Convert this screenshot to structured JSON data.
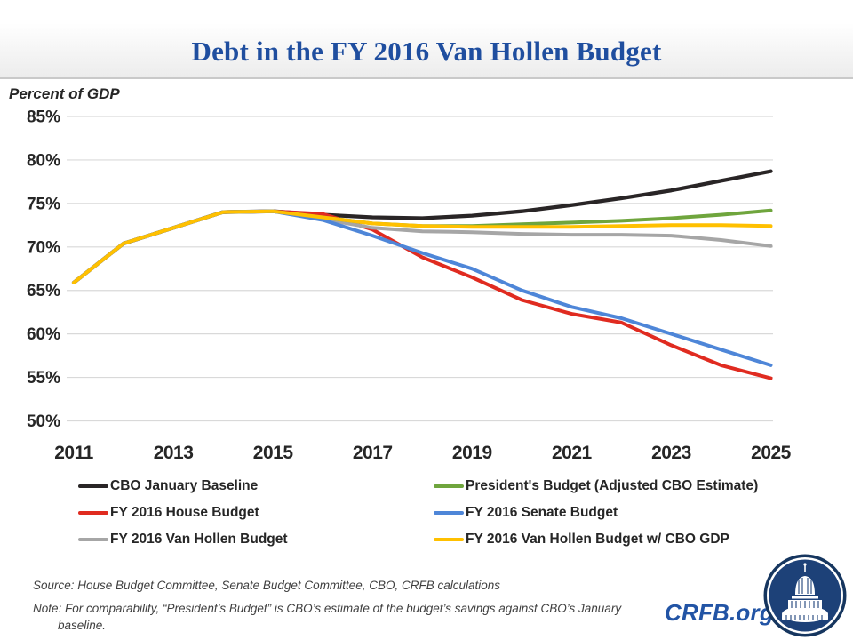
{
  "slide": {
    "title": "Debt in the FY 2016 Van Hollen Budget",
    "y_axis_caption": "Percent of GDP",
    "footer": {
      "source": "Source: House Budget Committee, Senate Budget Committee, CBO, CRFB calculations",
      "note": "Note: For comparability, “President’s Budget” is CBO’s estimate of the budget’s savings against CBO’s January baseline."
    },
    "branding": {
      "site": "CRFB.org",
      "logo": "crfb-capitol-logo"
    },
    "colors": {
      "title_blue": "#1F4E9F",
      "brand_blue": "#2254A5",
      "gridline": "#D9D9D9",
      "axis_text": "#262626",
      "header_divider": "#C9C9C9"
    }
  },
  "chart_data": {
    "type": "line",
    "title": "Debt in the FY 2016 Van Hollen Budget",
    "ylabel": "Percent of GDP",
    "xlabel": "",
    "x": [
      2011,
      2012,
      2013,
      2014,
      2015,
      2016,
      2017,
      2018,
      2019,
      2020,
      2021,
      2022,
      2023,
      2024,
      2025
    ],
    "axis": {
      "xlim": [
        2011,
        2025
      ],
      "ylim": [
        50,
        85
      ],
      "grid": true
    },
    "yticks": [
      {
        "value": 85,
        "label": "85%"
      },
      {
        "value": 80,
        "label": "80%"
      },
      {
        "value": 75,
        "label": "75%"
      },
      {
        "value": 70,
        "label": "70%"
      },
      {
        "value": 65,
        "label": "65%"
      },
      {
        "value": 60,
        "label": "60%"
      },
      {
        "value": 55,
        "label": "55%"
      },
      {
        "value": 50,
        "label": "50%"
      }
    ],
    "xticks": [
      {
        "value": 2011,
        "label": "2011"
      },
      {
        "value": 2013,
        "label": "2013"
      },
      {
        "value": 2015,
        "label": "2015"
      },
      {
        "value": 2017,
        "label": "2017"
      },
      {
        "value": 2019,
        "label": "2019"
      },
      {
        "value": 2021,
        "label": "2021"
      },
      {
        "value": 2023,
        "label": "2023"
      },
      {
        "value": 2025,
        "label": "2025"
      }
    ],
    "series": [
      {
        "name": "CBO January Baseline",
        "color": "#292526",
        "width": 4.3,
        "values": [
          65.9,
          70.4,
          72.2,
          74.0,
          74.1,
          73.7,
          73.4,
          73.3,
          73.6,
          74.1,
          74.8,
          75.6,
          76.5,
          77.6,
          78.7
        ]
      },
      {
        "name": "FY 2016 House Budget",
        "color": "#E02B20",
        "width": 4,
        "values": [
          65.9,
          70.4,
          72.2,
          74.0,
          74.1,
          73.8,
          72.0,
          68.8,
          66.5,
          63.9,
          62.3,
          61.3,
          58.7,
          56.4,
          54.9
        ]
      },
      {
        "name": "FY 2016 Van Hollen Budget",
        "color": "#A6A6A6",
        "width": 4,
        "values": [
          65.9,
          70.4,
          72.2,
          74.0,
          74.1,
          73.2,
          72.2,
          71.8,
          71.7,
          71.5,
          71.4,
          71.4,
          71.3,
          70.8,
          70.1
        ]
      },
      {
        "name": "President's Budget (Adjusted CBO Estimate)",
        "color": "#6FA53D",
        "width": 4,
        "values": [
          65.9,
          70.4,
          72.2,
          74.0,
          74.1,
          73.4,
          72.7,
          72.4,
          72.4,
          72.6,
          72.8,
          73.0,
          73.3,
          73.7,
          74.2
        ]
      },
      {
        "name": "FY 2016 Senate Budget",
        "color": "#4E86D8",
        "width": 4,
        "values": [
          65.9,
          70.4,
          72.2,
          74.0,
          74.1,
          73.1,
          71.3,
          69.3,
          67.5,
          65.0,
          63.1,
          61.8,
          60.0,
          58.2,
          56.4
        ]
      },
      {
        "name": "FY 2016 Van Hollen Budget w/ CBO GDP",
        "color": "#FFC000",
        "width": 4,
        "values": [
          65.9,
          70.4,
          72.2,
          74.0,
          74.1,
          73.4,
          72.7,
          72.4,
          72.3,
          72.3,
          72.3,
          72.4,
          72.5,
          72.5,
          72.4
        ]
      }
    ],
    "legend": {
      "position": "bottom",
      "columns": [
        [
          "CBO January Baseline",
          "FY 2016 House Budget",
          "FY 2016 Van Hollen Budget"
        ],
        [
          "President's Budget (Adjusted CBO Estimate)",
          "FY 2016 Senate Budget",
          "FY 2016 Van Hollen Budget w/ CBO GDP"
        ]
      ]
    }
  }
}
